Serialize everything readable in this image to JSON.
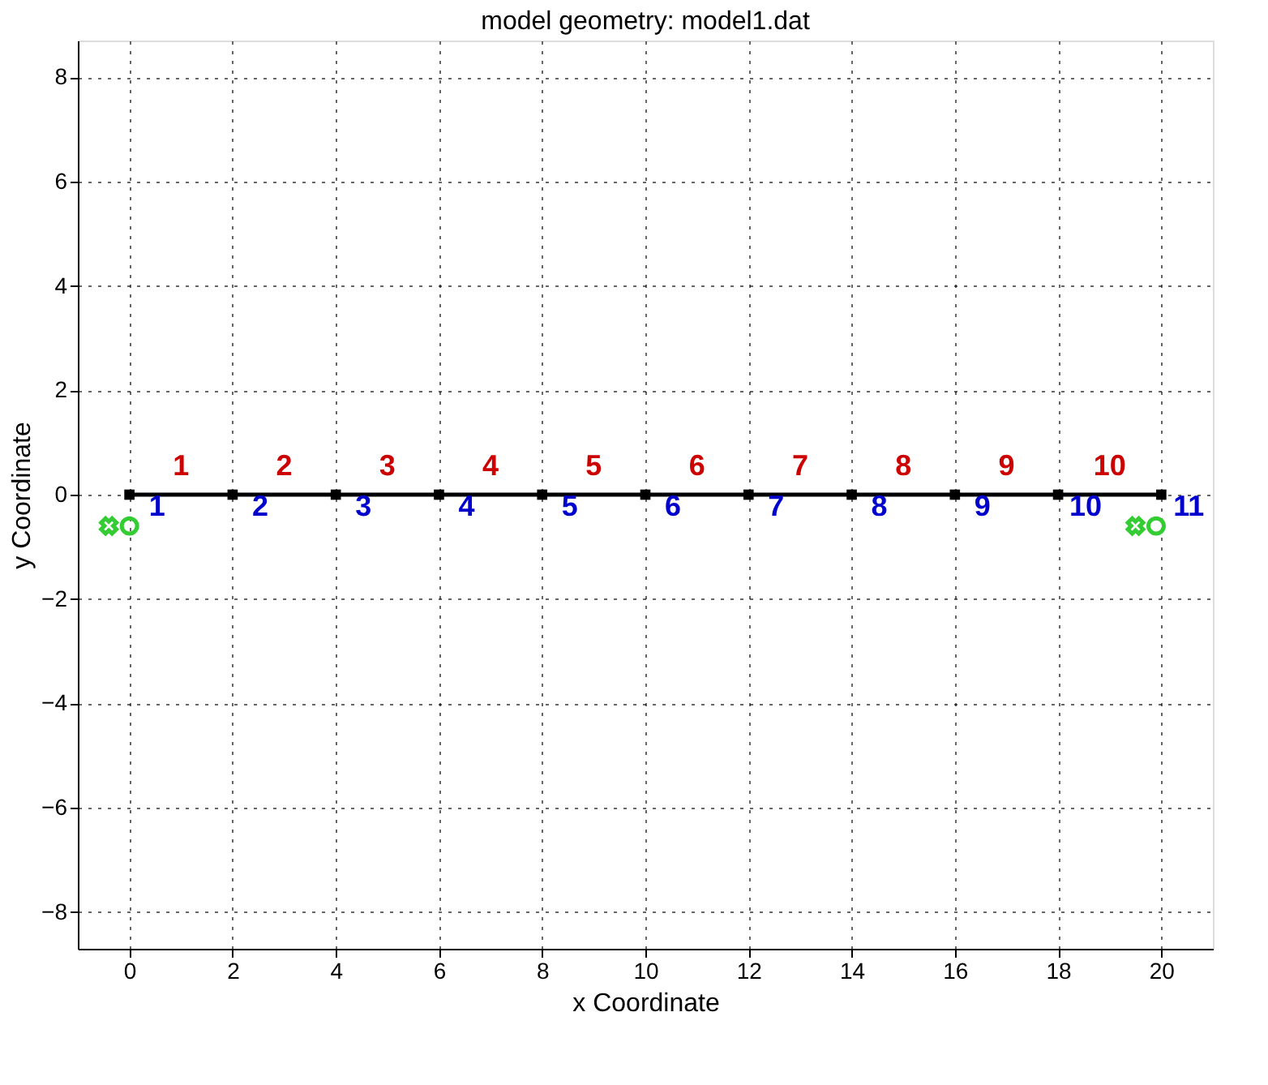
{
  "chart_data": {
    "type": "line",
    "title": "model geometry: model1.dat",
    "xlabel": "x Coordinate",
    "ylabel": "y Coordinate",
    "x": [
      0,
      2,
      4,
      6,
      8,
      10,
      12,
      14,
      16,
      18,
      20
    ],
    "series": [
      {
        "color": "#000000",
        "values": [
          0,
          0,
          0,
          0,
          0,
          0,
          0,
          0,
          0,
          0,
          0
        ]
      },
      {
        "type": "scatter",
        "marker": "cross",
        "color": "#33cc33",
        "x": [
          -0.4,
          19.5
        ],
        "values": [
          -0.6,
          -0.6
        ]
      },
      {
        "type": "scatter",
        "marker": "circle",
        "color": "#33cc33",
        "x": [
          0,
          19.9
        ],
        "values": [
          -0.6,
          -0.6
        ]
      }
    ],
    "marker": "square",
    "line_style": "solid",
    "grid": true,
    "legend": false,
    "xlim": [
      -1,
      21
    ],
    "xticks": [
      0,
      2,
      4,
      6,
      8,
      10,
      12,
      14,
      16,
      18,
      20
    ],
    "ylim": [
      -8.7,
      8.7
    ],
    "yticks": [
      -8,
      -6,
      -4,
      -2,
      0,
      2,
      4,
      6,
      8
    ],
    "annotations": [
      {
        "text": "1",
        "x": 0,
        "y": 0
      },
      {
        "text": "2",
        "x": 2,
        "y": 0
      },
      {
        "text": "3",
        "x": 4,
        "y": 0
      },
      {
        "text": "4",
        "x": 6,
        "y": 0
      },
      {
        "text": "5",
        "x": 8,
        "y": 0
      },
      {
        "text": "6",
        "x": 10,
        "y": 0
      },
      {
        "text": "7",
        "x": 12,
        "y": 0
      },
      {
        "text": "8",
        "x": 14,
        "y": 0
      },
      {
        "text": "9",
        "x": 16,
        "y": 0
      },
      {
        "text": "10",
        "x": 18,
        "y": 0
      },
      {
        "text": "11",
        "x": 20,
        "y": 0
      },
      {
        "text": "1",
        "x": 1,
        "y": 0
      },
      {
        "text": "2",
        "x": 3,
        "y": 0
      },
      {
        "text": "3",
        "x": 5,
        "y": 0
      },
      {
        "text": "4",
        "x": 7,
        "y": 0
      },
      {
        "text": "5",
        "x": 9,
        "y": 0
      },
      {
        "text": "6",
        "x": 11,
        "y": 0
      },
      {
        "text": "7",
        "x": 13,
        "y": 0
      },
      {
        "text": "8",
        "x": 15,
        "y": 0
      },
      {
        "text": "9",
        "x": 17,
        "y": 0
      },
      {
        "text": "10",
        "x": 19,
        "y": 0
      }
    ]
  }
}
